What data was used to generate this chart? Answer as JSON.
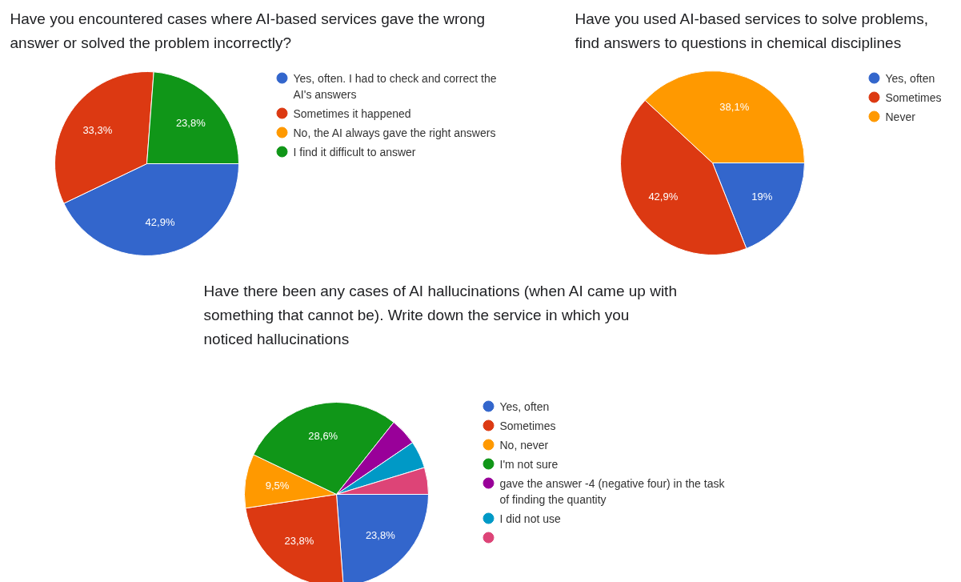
{
  "chart_data": [
    {
      "type": "pie",
      "title": "Have you encountered cases where AI-based services gave the wrong answer or solved the problem incorrectly?",
      "categories": [
        "Yes, often. I had to check and correct the AI's answers",
        "Sometimes it happened",
        "No, the AI always gave the right answers",
        "I find it difficult to answer"
      ],
      "values": [
        42.9,
        33.3,
        0,
        23.8
      ],
      "colors": [
        "#3366cc",
        "#dc3912",
        "#ff9900",
        "#109618"
      ],
      "value_labels": [
        "42,9%",
        "33,3%",
        null,
        "23,8%"
      ],
      "legend": "right"
    },
    {
      "type": "pie",
      "title": "Have you used AI-based services to solve problems, find answers to questions in chemical disciplines",
      "categories": [
        "Yes, often",
        "Sometimes",
        "Never"
      ],
      "values": [
        19,
        42.9,
        38.1
      ],
      "colors": [
        "#3366cc",
        "#dc3912",
        "#ff9900"
      ],
      "value_labels": [
        "19%",
        "42,9%",
        "38,1%"
      ],
      "legend": "right"
    },
    {
      "type": "pie",
      "title": "Have there been any cases of AI hallucinations (when AI came up with something that cannot be). Write down the service in which you noticed hallucinations",
      "categories": [
        "Yes, often",
        "Sometimes",
        "No, never",
        "I'm not sure",
        "gave the answer -4 (negative four) in the task of finding the quantity",
        "I did not use",
        null
      ],
      "values": [
        23.8,
        23.8,
        9.5,
        28.6,
        4.8,
        4.8,
        4.7
      ],
      "colors": [
        "#3366cc",
        "#dc3912",
        "#ff9900",
        "#109618",
        "#990099",
        "#0099c6",
        "#dd4477"
      ],
      "value_labels": [
        "23,8%",
        "23,8%",
        "9,5%",
        "28,6%",
        null,
        null,
        null
      ],
      "legend": "right"
    }
  ]
}
